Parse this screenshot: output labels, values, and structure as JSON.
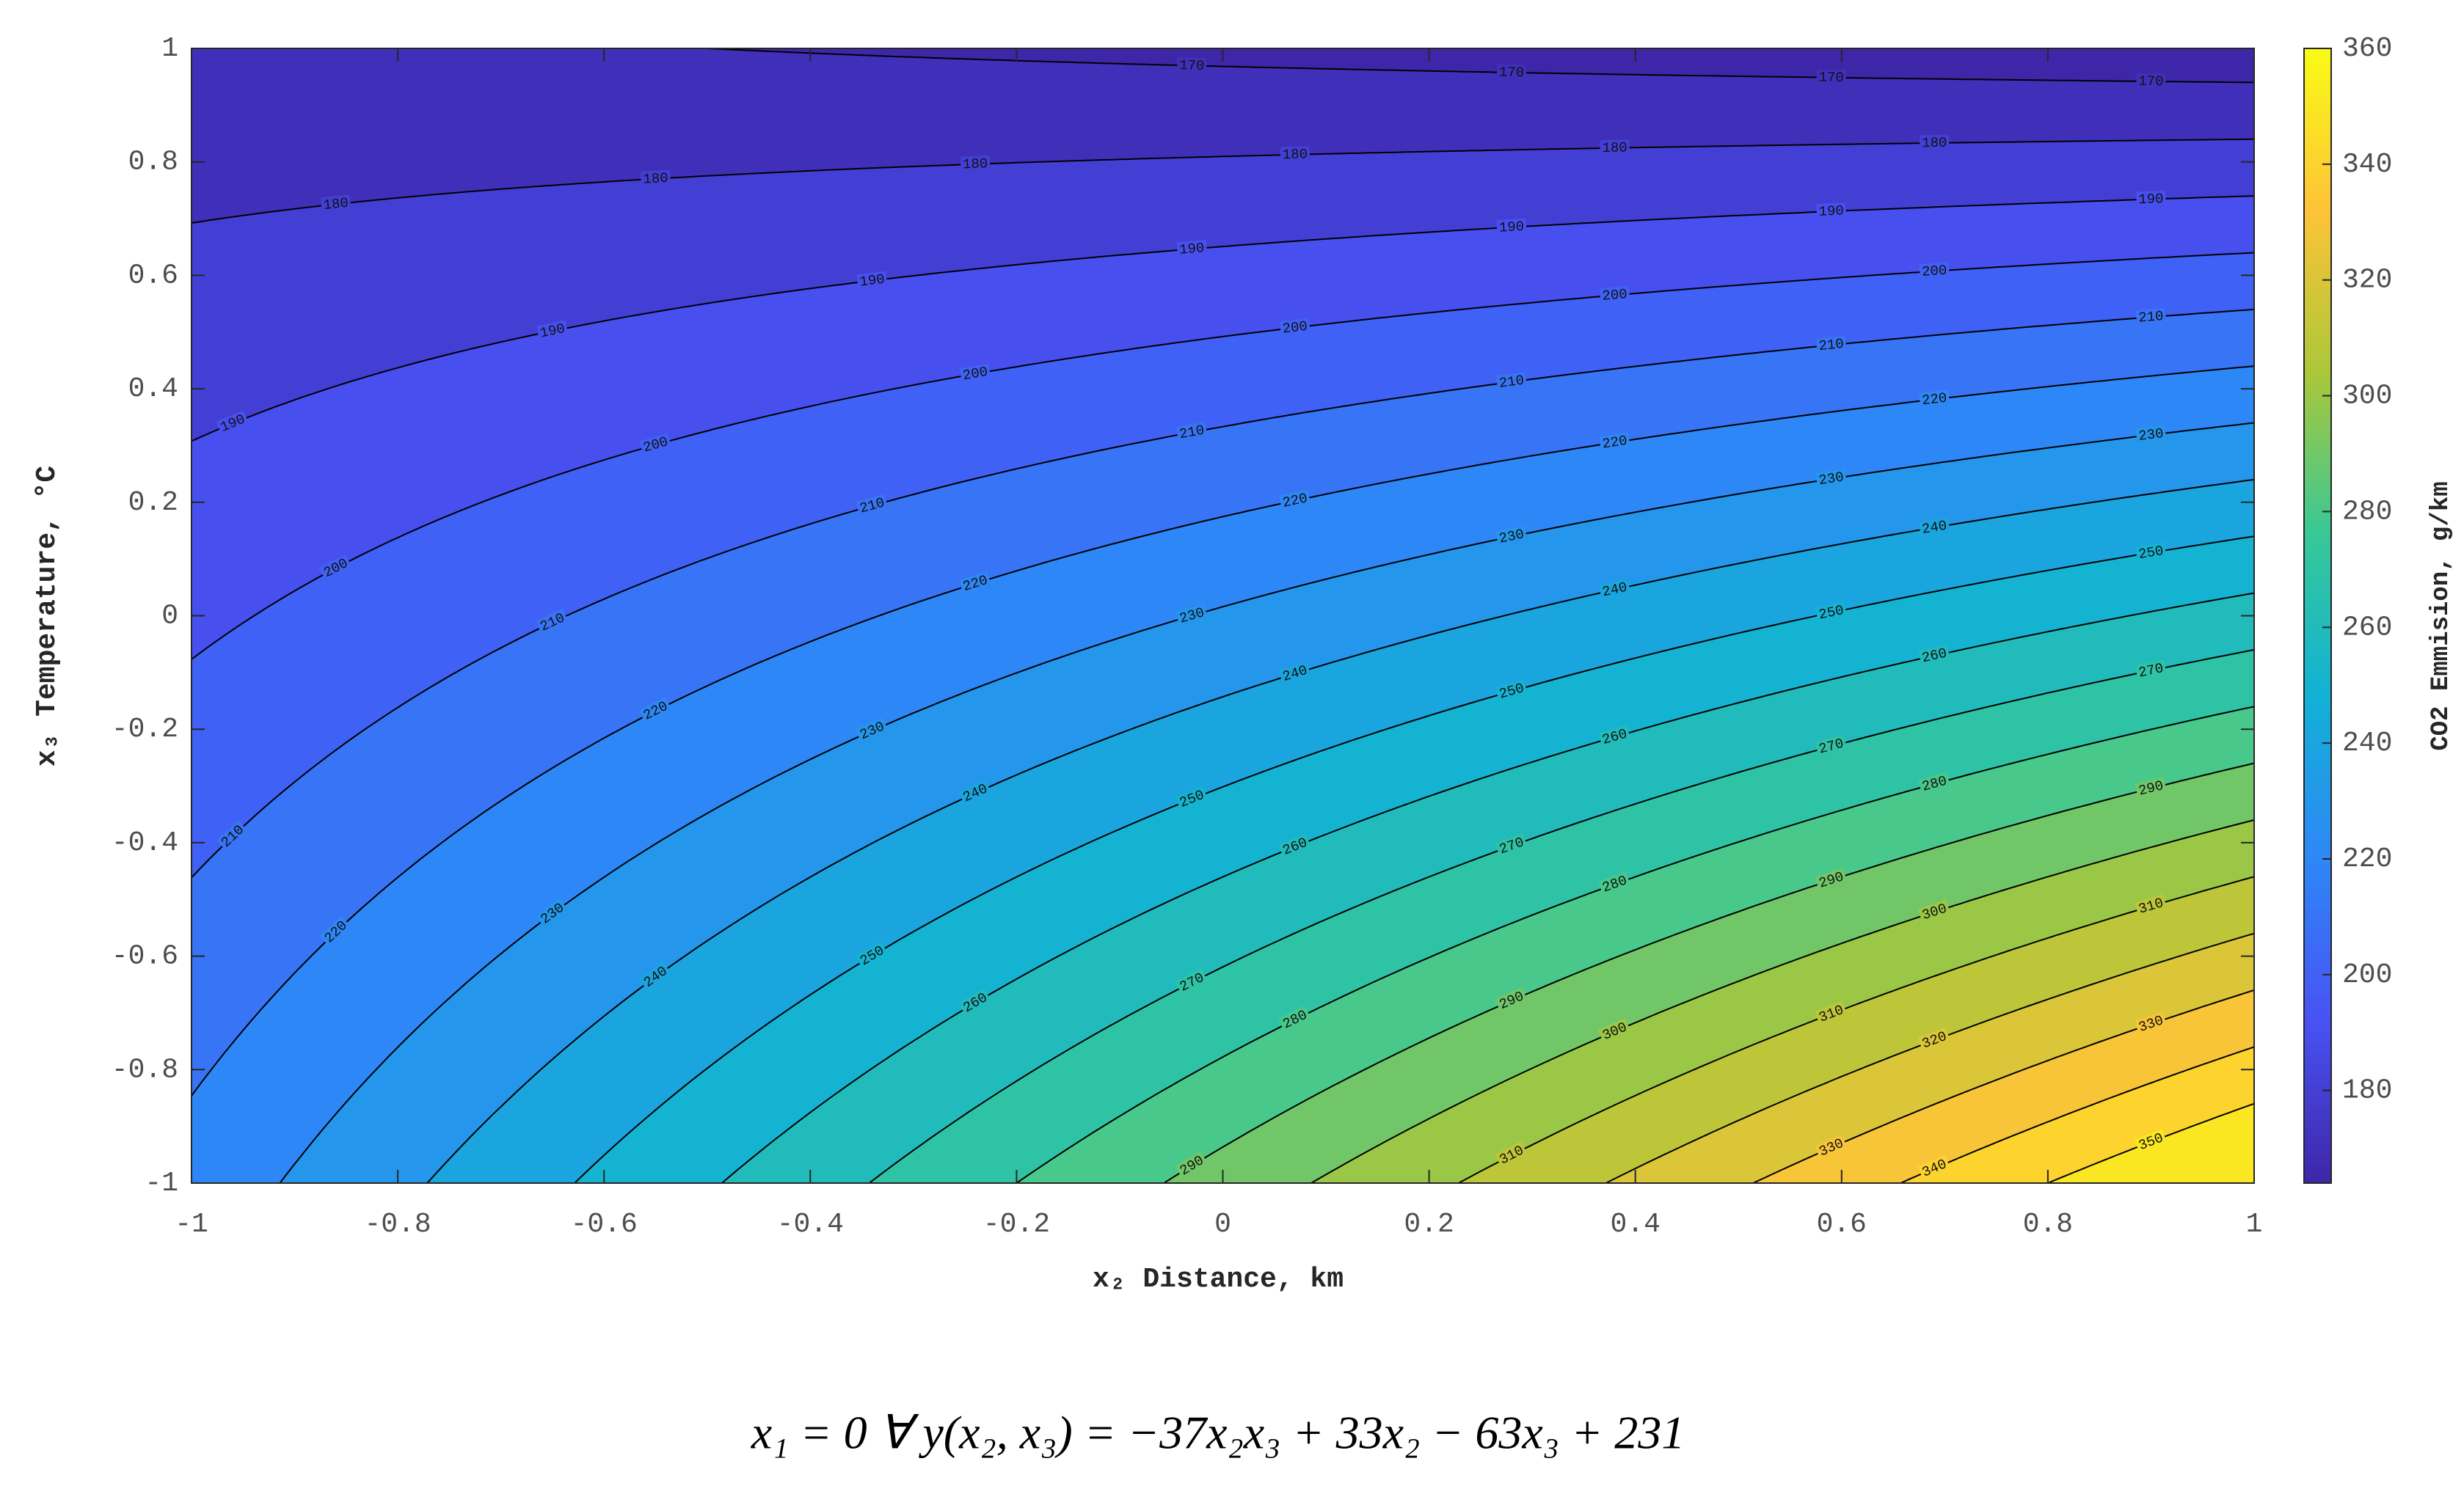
{
  "chart_data": {
    "type": "contour",
    "xlabel": "x₂ Distance, km",
    "ylabel": "x₃ Temperature, °C",
    "colorbar_label": "CO2 Emmision, g/km",
    "equation": "x₁ = 0 ∀ y(x₂, x₃) = −37x₂x₃ + 33x₂ − 63x₃ + 231",
    "xlim": [
      -1,
      1
    ],
    "ylim": [
      -1,
      1
    ],
    "xticks": [
      -1,
      -0.8,
      -0.6,
      -0.4,
      -0.2,
      0,
      0.2,
      0.4,
      0.6,
      0.8,
      1
    ],
    "yticks": [
      -1,
      -0.8,
      -0.6,
      -0.4,
      -0.2,
      0,
      0.2,
      0.4,
      0.6,
      0.8,
      1
    ],
    "levels": [
      170,
      180,
      190,
      200,
      210,
      220,
      230,
      240,
      250,
      260,
      270,
      280,
      290,
      300,
      310,
      320,
      330,
      340,
      350
    ],
    "clim": [
      164,
      360
    ],
    "cticks": [
      180,
      200,
      220,
      240,
      260,
      280,
      300,
      320,
      340,
      360
    ],
    "colormap": "parula"
  }
}
